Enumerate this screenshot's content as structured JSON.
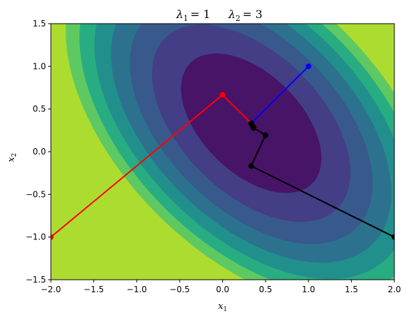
{
  "chart_data": {
    "type": "contour",
    "title": "λ1 = 1      λ2 = 3",
    "title_parts": {
      "lambda1_symbol": "λ",
      "lambda1_sub": "1",
      "lambda1_value": "= 1",
      "lambda2_symbol": "λ",
      "lambda2_sub": "2",
      "lambda2_value": "= 3"
    },
    "xlabel": {
      "base": "x",
      "sub": "1"
    },
    "ylabel": {
      "base": "x",
      "sub": "2"
    },
    "xlim": [
      -2.0,
      2.0
    ],
    "ylim": [
      -1.5,
      1.5
    ],
    "xticks": [
      "−2.0",
      "−1.5",
      "−1.0",
      "−0.5",
      "0.0",
      "0.5",
      "1.0",
      "1.5",
      "2.0"
    ],
    "xtick_values": [
      -2.0,
      -1.5,
      -1.0,
      -0.5,
      0.0,
      0.5,
      1.0,
      1.5,
      2.0
    ],
    "yticks": [
      "−1.5",
      "−1.0",
      "−0.5",
      "0.0",
      "0.5",
      "1.0",
      "1.5"
    ],
    "ytick_values": [
      -1.5,
      -1.0,
      -0.5,
      0.0,
      0.5,
      1.0,
      1.5
    ],
    "grid": false,
    "legend": "none",
    "contour": {
      "center": [
        0.333,
        0.333
      ],
      "eigenvalues": [
        1,
        3
      ],
      "major_axis_direction": [
        0.7071,
        -0.7071
      ],
      "levels": [
        0.25,
        1.0,
        2.0,
        3.0,
        4.0,
        5.0,
        6.0,
        7.0
      ],
      "colors": [
        "#ffffff",
        "#481467",
        "#433e85",
        "#38598c",
        "#2c728e",
        "#21908d",
        "#27ad81",
        "#5ec962",
        "#addc30"
      ]
    },
    "series": [
      {
        "color": "#ff0000",
        "points": [
          [
            -2.0,
            -1.0
          ],
          [
            0.0,
            0.667
          ],
          [
            0.333,
            0.333
          ]
        ]
      },
      {
        "color": "#0000ff",
        "points": [
          [
            1.0,
            1.0
          ],
          [
            0.333,
            0.333
          ]
        ]
      },
      {
        "color": "#000000",
        "points": [
          [
            2.0,
            -1.0
          ],
          [
            0.333,
            -0.167
          ],
          [
            0.5,
            0.194
          ],
          [
            0.361,
            0.278
          ],
          [
            0.347,
            0.306
          ],
          [
            0.336,
            0.326
          ],
          [
            0.334,
            0.331
          ],
          [
            0.333,
            0.333
          ]
        ]
      }
    ]
  }
}
